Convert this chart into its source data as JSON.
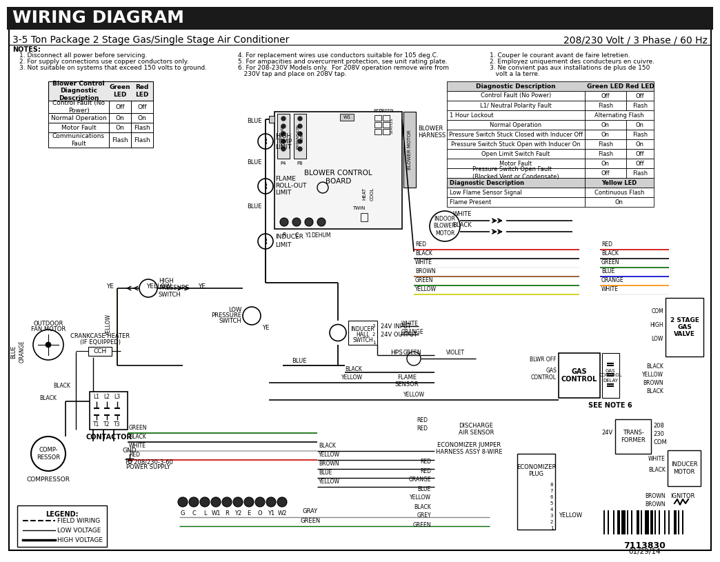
{
  "title_bar_text": "WIRING DIAGRAM",
  "subtitle": "3-5 Ton Package 2 Stage Gas/Single Stage Air Conditioner",
  "right_header": "208/230 Volt / 3 Phase / 60 Hz",
  "bg_color": "#ffffff",
  "title_bar_bg": "#1a1a1a",
  "title_bar_text_color": "#ffffff",
  "notes_left": [
    "1. Disconnect all power before servicing.",
    "2. For supply connections use copper conductors only.",
    "3. Not suitable on systems that exceed 150 volts to ground."
  ],
  "notes_middle": [
    "4. For replacement wires use conductors suitable for 105 deg.C.",
    "5. For ampacities and overcurrent protection, see unit rating plate.",
    "6. For 208-230V Models only.  For 208V operation remove wire from",
    "   230V tap and place on 208V tap."
  ],
  "notes_right": [
    "1. Couper le courant avant de faire letretien.",
    "2. Employez uniquement des conducteurs en cuivre.",
    "3. Ne convient pas aux installations de plus de 150",
    "   volt a la terre."
  ],
  "blower_table_headers": [
    "Blower Control\nDiagnostic\nDescription",
    "Green\nLED",
    "Red\nLED"
  ],
  "blower_table_rows": [
    [
      "Control Fault (No\nPower)",
      "Off",
      "Off"
    ],
    [
      "Normal Operation",
      "On",
      "On"
    ],
    [
      "Motor Fault",
      "On",
      "Flash"
    ],
    [
      "Communications\nFault",
      "Flash",
      "Flash"
    ]
  ],
  "diag_table_headers": [
    "Diagnostic Description",
    "Green LED",
    "Red LED"
  ],
  "diag_table_rows": [
    [
      "Control Fault (No Power)",
      "Off",
      "Off"
    ],
    [
      "L1/ Neutral Polarity Fault",
      "Flash",
      "Flash"
    ],
    [
      "1 Hour Lockout",
      "Alternating Flash",
      ""
    ],
    [
      "Normal Operation",
      "On",
      "On"
    ],
    [
      "Pressure Switch Stuck Closed with Inducer Off",
      "On",
      "Flash"
    ],
    [
      "Pressure Switch Stuck Open with Inducer On",
      "Flash",
      "On"
    ],
    [
      "Open Limit Switch Fault",
      "Flash",
      "Off"
    ],
    [
      "Motor Fault",
      "On",
      "Off"
    ],
    [
      "Pressure Switch Open Fault\n(Blocked Vent or Condensate)",
      "Off",
      "Flash"
    ],
    [
      "Diagnostic Description",
      "Yellow LED",
      ""
    ],
    [
      "Low Flame Sensor Signal",
      "Continuous Flash",
      ""
    ],
    [
      "Flame Present",
      "On",
      ""
    ]
  ],
  "part_number": "7113830",
  "date": "01/29/14"
}
